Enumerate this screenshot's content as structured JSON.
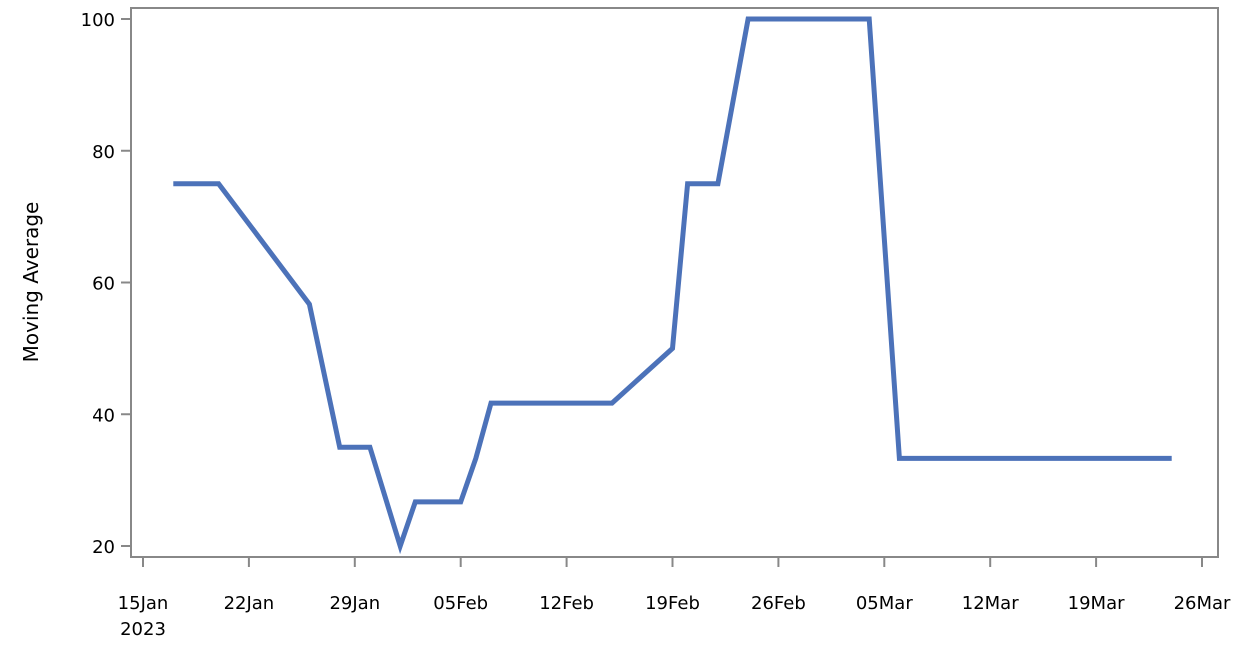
{
  "chart_data": {
    "type": "line",
    "title": "",
    "xlabel": "",
    "ylabel": "Moving Average",
    "x_tick_labels": [
      "15Jan",
      "22Jan",
      "29Jan",
      "05Feb",
      "12Feb",
      "19Feb",
      "26Feb",
      "05Mar",
      "12Mar",
      "19Mar",
      "26Mar"
    ],
    "x_tick_sublabel": "2023",
    "y_tick_labels": [
      "20",
      "40",
      "60",
      "80",
      "100"
    ],
    "y_ticks": [
      20,
      40,
      60,
      80,
      100
    ],
    "xlim": [
      "2023-01-15",
      "2023-03-26"
    ],
    "ylim": [
      20,
      100
    ],
    "grid": false,
    "line_color": "#4c72b9",
    "series": [
      {
        "values": [
          {
            "x": "2023-01-17",
            "y": 75
          },
          {
            "x": "2023-01-20",
            "y": 75
          },
          {
            "x": "2023-01-26",
            "y": 56.7
          },
          {
            "x": "2023-01-28",
            "y": 35
          },
          {
            "x": "2023-01-30",
            "y": 35
          },
          {
            "x": "2023-02-01",
            "y": 20
          },
          {
            "x": "2023-02-02",
            "y": 26.7
          },
          {
            "x": "2023-02-05",
            "y": 26.7
          },
          {
            "x": "2023-02-06",
            "y": 33.3
          },
          {
            "x": "2023-02-07",
            "y": 41.7
          },
          {
            "x": "2023-02-15",
            "y": 41.7
          },
          {
            "x": "2023-02-19",
            "y": 50
          },
          {
            "x": "2023-02-20",
            "y": 75
          },
          {
            "x": "2023-02-22",
            "y": 75
          },
          {
            "x": "2023-02-24",
            "y": 100
          },
          {
            "x": "2023-03-04",
            "y": 100
          },
          {
            "x": "2023-03-06",
            "y": 33.3
          },
          {
            "x": "2023-03-24",
            "y": 33.3
          }
        ]
      }
    ]
  }
}
